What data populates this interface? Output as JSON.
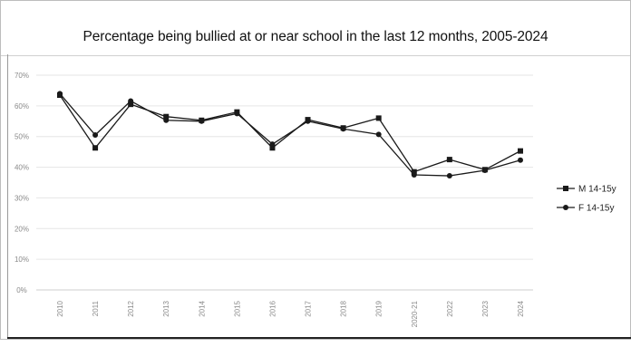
{
  "chart_data": {
    "type": "line",
    "title": "Percentage being bullied at or near school in the last 12 months, 2005-2024",
    "xlabel": "",
    "ylabel": "",
    "categories": [
      "2010",
      "2011",
      "2012",
      "2013",
      "2014",
      "2015",
      "2016",
      "2017",
      "2018",
      "2019",
      "2020-21",
      "2022",
      "2023",
      "2024"
    ],
    "ylim": [
      0,
      70
    ],
    "yticks": [
      "0%",
      "10%",
      "20%",
      "30%",
      "40%",
      "50%",
      "60%",
      "70%"
    ],
    "ytick_values": [
      0,
      10,
      20,
      30,
      40,
      50,
      60,
      70
    ],
    "grid": true,
    "legend_position": "right",
    "series": [
      {
        "name": "M 14-15y",
        "marker": "square",
        "color": "#1a1a1a",
        "values": [
          63.5,
          46.3,
          60.5,
          56.5,
          55.3,
          58.0,
          46.3,
          55.5,
          52.8,
          56.0,
          38.5,
          42.5,
          39.2,
          45.3
        ]
      },
      {
        "name": "F 14-15y",
        "marker": "circle",
        "color": "#1a1a1a",
        "values": [
          64.0,
          50.5,
          61.6,
          55.3,
          55.0,
          57.5,
          47.5,
          55.0,
          52.5,
          50.7,
          37.5,
          37.2,
          39.0,
          42.3
        ]
      }
    ]
  }
}
